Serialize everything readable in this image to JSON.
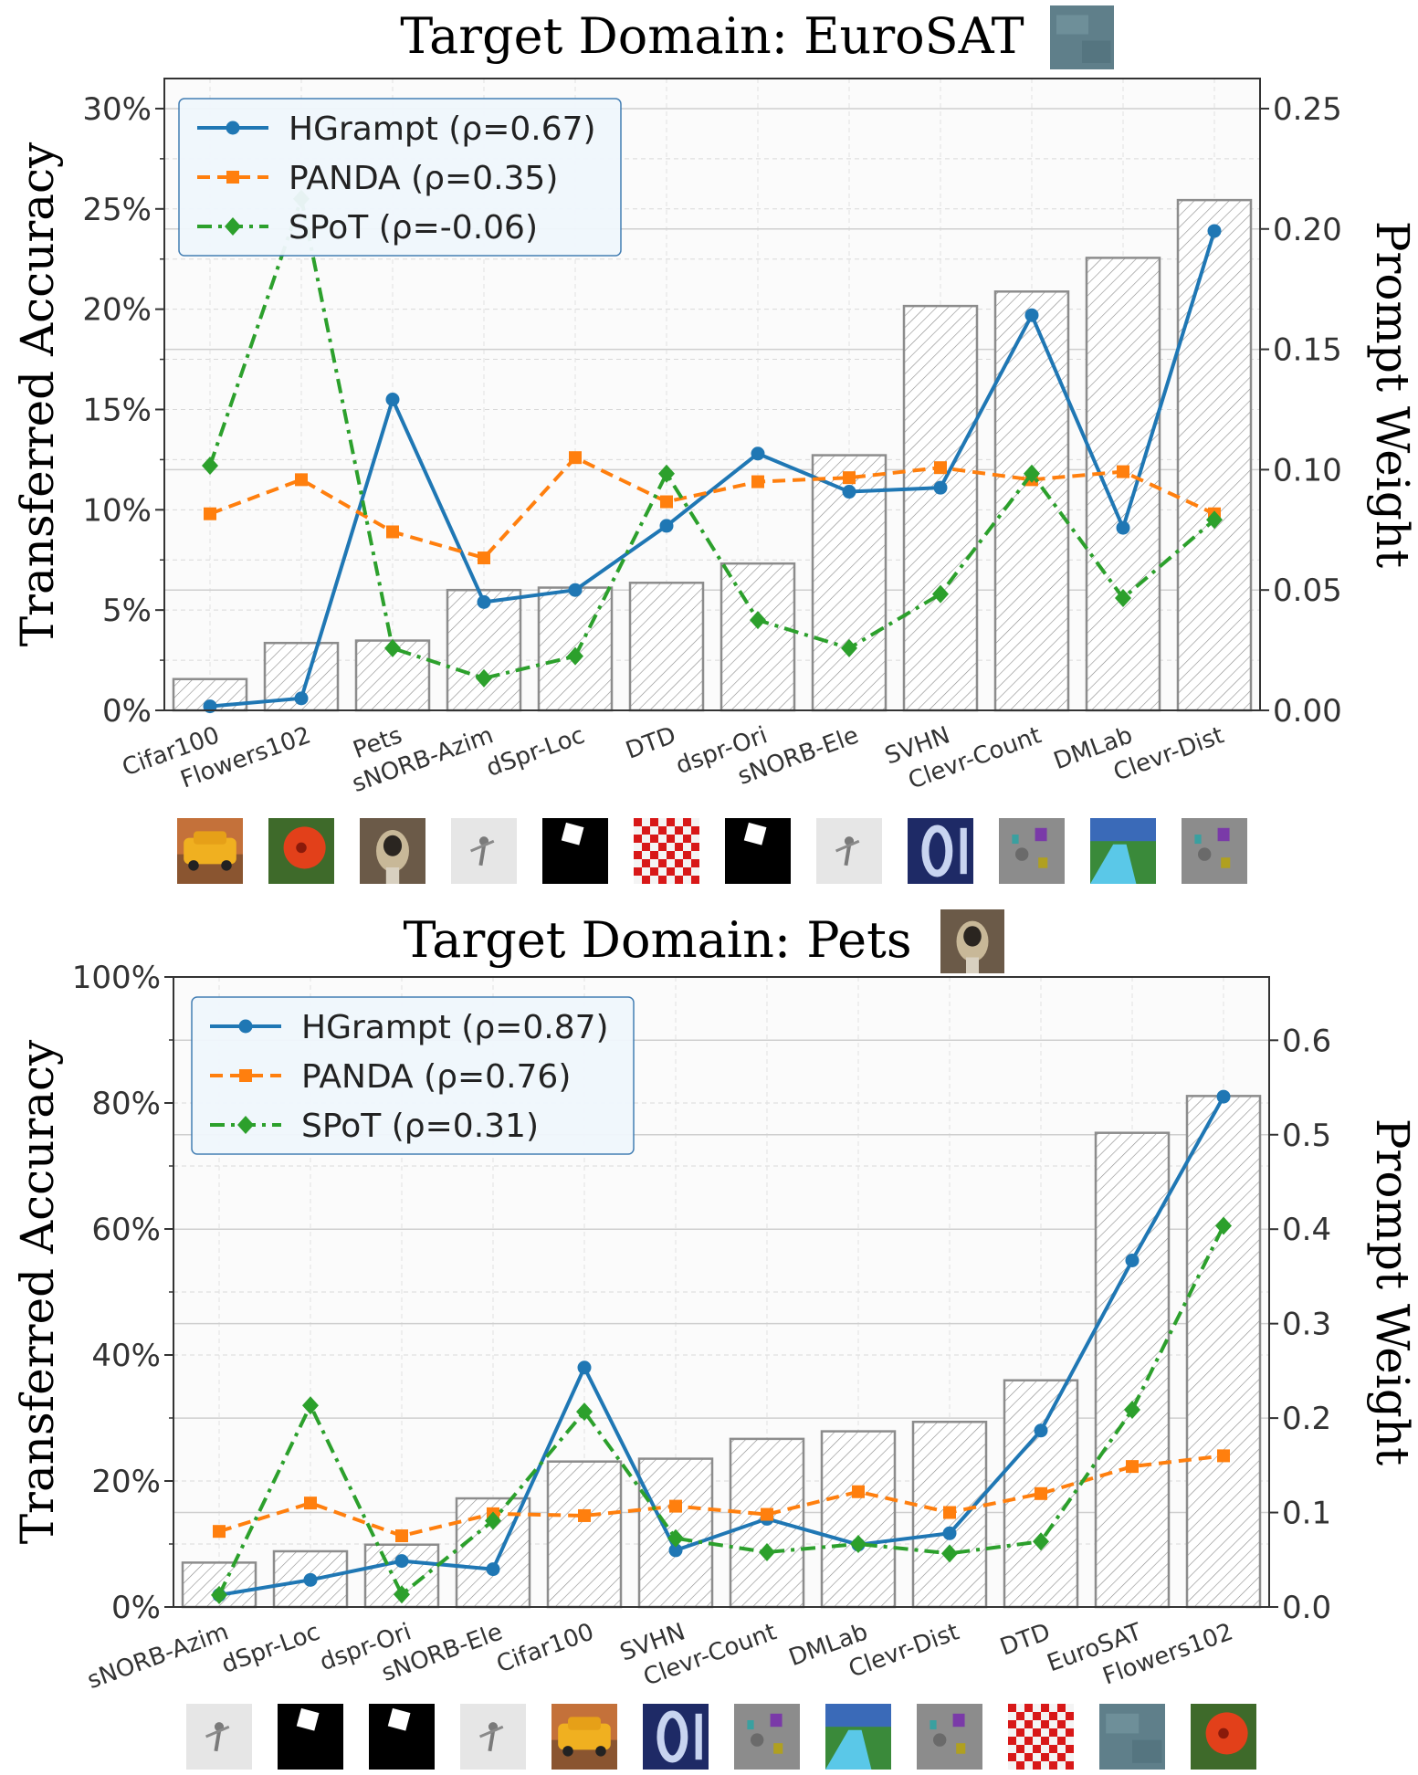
{
  "chart_data": [
    {
      "type": "bar+line",
      "title": "Target Domain: EuroSAT",
      "title_thumb_icon": "eurosat-satellite-thumbnail",
      "ylabel_left": "Transferred Accuracy",
      "ylabel_right": "Prompt Weight",
      "ylim_left": [
        0,
        31.5
      ],
      "ylim_right": [
        0,
        0.2625
      ],
      "yticks_left": [
        "0%",
        "5%",
        "10%",
        "15%",
        "20%",
        "25%",
        "30%"
      ],
      "yticks_left_values": [
        0,
        5,
        10,
        15,
        20,
        25,
        30
      ],
      "yticks_right": [
        "0.00",
        "0.05",
        "0.10",
        "0.15",
        "0.20",
        "0.25"
      ],
      "yticks_right_values": [
        0,
        0.05,
        0.1,
        0.15,
        0.2,
        0.25
      ],
      "grid": true,
      "legend_position": "top-left",
      "categories": [
        "Cifar100",
        "Flowers102",
        "Pets",
        "sNORB-Azim",
        "dSpr-Loc",
        "DTD",
        "dspr-Ori",
        "sNORB-Ele",
        "SVHN",
        "Clevr-Count",
        "DMLab",
        "Clevr-Dist"
      ],
      "category_thumb_icons": [
        "cifar-car-thumbnail",
        "flower-thumbnail",
        "dog-thumbnail",
        "snorb-figure-thumbnail",
        "dsprites-square-thumbnail",
        "checker-texture-thumbnail",
        "dsprites-square-thumbnail",
        "snorb-figure-thumbnail",
        "svhn-digit-thumbnail",
        "clevr-objects-thumbnail",
        "dmlab-maze-thumbnail",
        "clevr-objects-thumbnail"
      ],
      "bars": {
        "name": "Prompt Weight",
        "axis": "right",
        "values": [
          0.013,
          0.028,
          0.029,
          0.05,
          0.051,
          0.053,
          0.061,
          0.106,
          0.168,
          0.174,
          0.188,
          0.212
        ]
      },
      "series": [
        {
          "name": "HGrampt (ρ=0.67)",
          "color": "#1f77b4",
          "marker": "circle",
          "dash": "solid",
          "values": [
            0.2,
            0.6,
            15.5,
            5.4,
            6.0,
            9.2,
            12.8,
            10.9,
            11.1,
            19.7,
            9.1,
            23.9
          ]
        },
        {
          "name": "PANDA (ρ=0.35)",
          "color": "#ff7f0e",
          "marker": "square",
          "dash": "dashed",
          "values": [
            9.8,
            11.5,
            8.9,
            7.6,
            12.6,
            10.4,
            11.4,
            11.6,
            12.1,
            11.5,
            11.9,
            9.8
          ]
        },
        {
          "name": "SPoT (ρ=-0.06)",
          "color": "#2ca02c",
          "marker": "diamond",
          "dash": "dashdot",
          "values": [
            12.2,
            25.5,
            3.1,
            1.6,
            2.7,
            11.8,
            4.5,
            3.1,
            5.8,
            11.8,
            5.6,
            9.5
          ]
        }
      ]
    },
    {
      "type": "bar+line",
      "title": "Target Domain: Pets",
      "title_thumb_icon": "dog-thumbnail",
      "ylabel_left": "Transferred Accuracy",
      "ylabel_right": "Prompt Weight",
      "ylim_left": [
        0,
        100
      ],
      "ylim_right": [
        0,
        0.667
      ],
      "yticks_left": [
        "0%",
        "20%",
        "40%",
        "60%",
        "80%",
        "100%"
      ],
      "yticks_left_values": [
        0,
        20,
        40,
        60,
        80,
        100
      ],
      "yticks_right": [
        "0.0",
        "0.1",
        "0.2",
        "0.3",
        "0.4",
        "0.5",
        "0.6"
      ],
      "yticks_right_values": [
        0,
        0.1,
        0.2,
        0.3,
        0.4,
        0.5,
        0.6
      ],
      "grid": true,
      "legend_position": "top-left",
      "categories": [
        "sNORB-Azim",
        "dSpr-Loc",
        "dspr-Ori",
        "sNORB-Ele",
        "Cifar100",
        "SVHN",
        "Clevr-Count",
        "DMLab",
        "Clevr-Dist",
        "DTD",
        "EuroSAT",
        "Flowers102"
      ],
      "category_thumb_icons": [
        "snorb-figure-thumbnail",
        "dsprites-square-thumbnail",
        "dsprites-square-thumbnail",
        "snorb-figure-thumbnail",
        "cifar-car-thumbnail",
        "svhn-digit-thumbnail",
        "clevr-objects-thumbnail",
        "dmlab-maze-thumbnail",
        "clevr-objects-thumbnail",
        "checker-texture-thumbnail",
        "eurosat-satellite-thumbnail",
        "flower-thumbnail"
      ],
      "bars": {
        "name": "Prompt Weight",
        "axis": "right",
        "values": [
          0.047,
          0.059,
          0.066,
          0.115,
          0.154,
          0.157,
          0.178,
          0.186,
          0.196,
          0.24,
          0.502,
          0.541
        ]
      },
      "series": [
        {
          "name": "HGrampt (ρ=0.87)",
          "color": "#1f77b4",
          "marker": "circle",
          "dash": "solid",
          "values": [
            1.9,
            4.3,
            7.3,
            6.0,
            38.0,
            9.0,
            14.0,
            9.9,
            11.7,
            28.0,
            55.0,
            81.0
          ]
        },
        {
          "name": "PANDA (ρ=0.76)",
          "color": "#ff7f0e",
          "marker": "square",
          "dash": "dashed",
          "values": [
            12.0,
            16.5,
            11.3,
            14.8,
            14.5,
            16.0,
            14.7,
            18.3,
            15.0,
            18.0,
            22.3,
            24.0
          ]
        },
        {
          "name": "SPoT (ρ=0.31)",
          "color": "#2ca02c",
          "marker": "diamond",
          "dash": "dashdot",
          "values": [
            1.9,
            32.0,
            2.0,
            13.7,
            31.0,
            10.9,
            8.7,
            10.0,
            8.5,
            10.4,
            31.3,
            60.5
          ]
        }
      ]
    }
  ]
}
